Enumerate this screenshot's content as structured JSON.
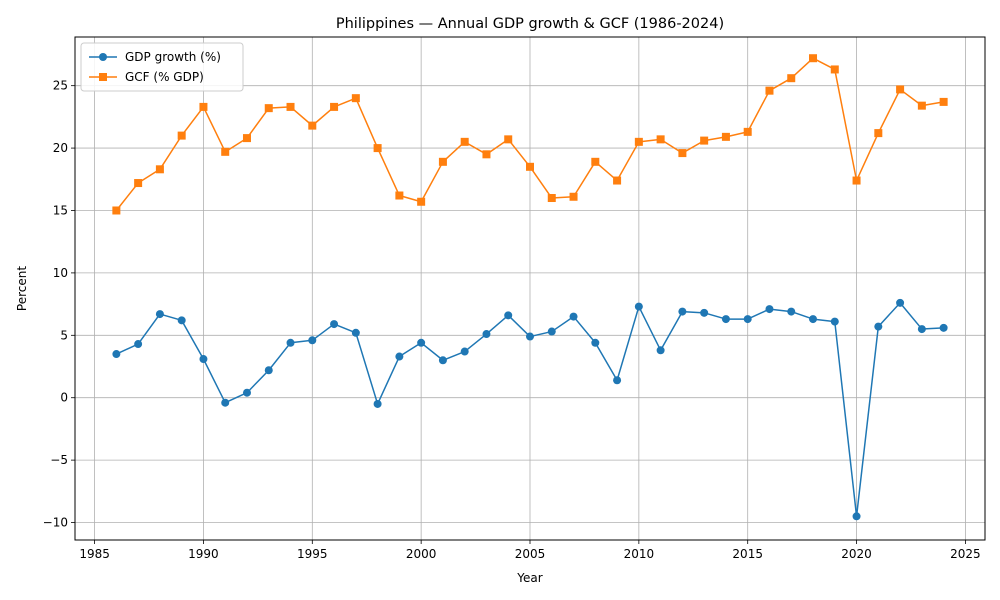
{
  "chart_data": {
    "type": "line",
    "title": "Philippines — Annual GDP growth & GCF (1986-2024)",
    "xlabel": "Year",
    "ylabel": "Percent",
    "xlim": [
      1984.1,
      2025.9
    ],
    "ylim": [
      -11.4,
      28.9
    ],
    "xticks": [
      1985,
      1990,
      1995,
      2000,
      2005,
      2010,
      2015,
      2020,
      2025
    ],
    "yticks": [
      -10,
      -5,
      0,
      5,
      10,
      15,
      20,
      25
    ],
    "grid": true,
    "legend_position": "top-left",
    "x": [
      1986,
      1987,
      1988,
      1989,
      1990,
      1991,
      1992,
      1993,
      1994,
      1995,
      1996,
      1997,
      1998,
      1999,
      2000,
      2001,
      2002,
      2003,
      2004,
      2005,
      2006,
      2007,
      2008,
      2009,
      2010,
      2011,
      2012,
      2013,
      2014,
      2015,
      2016,
      2017,
      2018,
      2019,
      2020,
      2021,
      2022,
      2023,
      2024
    ],
    "series": [
      {
        "name": "GDP growth (%)",
        "color": "#1f77b4",
        "marker": "circle",
        "values": [
          3.5,
          4.3,
          6.7,
          6.2,
          3.1,
          -0.4,
          0.4,
          2.2,
          4.4,
          4.6,
          5.9,
          5.2,
          -0.5,
          3.3,
          4.4,
          3.0,
          3.7,
          5.1,
          6.6,
          4.9,
          5.3,
          6.5,
          4.4,
          1.4,
          7.3,
          3.8,
          6.9,
          6.8,
          6.3,
          6.3,
          7.1,
          6.9,
          6.3,
          6.1,
          -9.5,
          5.7,
          7.6,
          5.5,
          5.6
        ]
      },
      {
        "name": "GCF (% GDP)",
        "color": "#ff7f0e",
        "marker": "square",
        "values": [
          15.0,
          17.2,
          18.3,
          21.0,
          23.3,
          19.7,
          20.8,
          23.2,
          23.3,
          21.8,
          23.3,
          24.0,
          20.0,
          16.2,
          15.7,
          18.9,
          20.5,
          19.5,
          20.7,
          18.5,
          16.0,
          16.1,
          18.9,
          17.4,
          20.5,
          20.7,
          19.6,
          20.6,
          20.9,
          21.3,
          24.6,
          25.6,
          27.2,
          26.3,
          17.4,
          21.2,
          24.7,
          23.4,
          23.7
        ]
      }
    ]
  }
}
